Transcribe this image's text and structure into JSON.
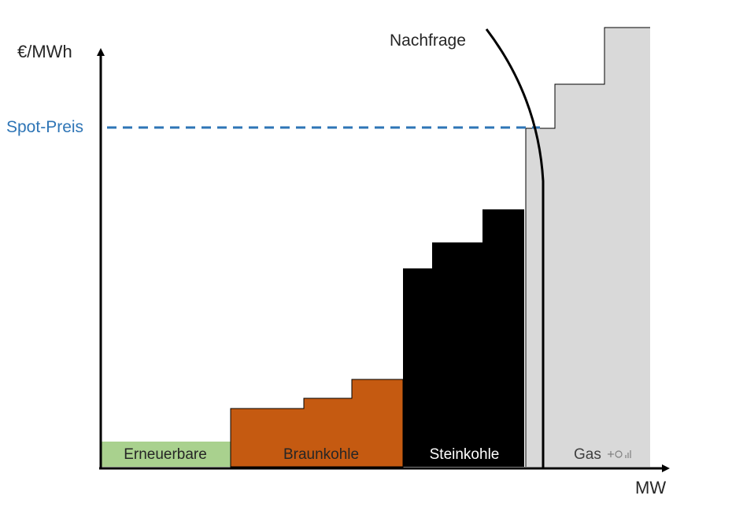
{
  "axes": {
    "y_label": "€/MWh",
    "x_label": "MW"
  },
  "spot_price": {
    "label": "Spot-Preis"
  },
  "demand": {
    "label": "Nachfrage"
  },
  "merit_order": [
    {
      "label": "Erneuerbare",
      "color": "#a9d18e"
    },
    {
      "label": "Braunkohle",
      "color": "#c55a11"
    },
    {
      "label": "Steinkohle",
      "color": "#000000"
    },
    {
      "label": "Gas",
      "color": "#d9d9d9"
    }
  ],
  "colors": {
    "axis": "#000000",
    "spot_price": "#2e75b6",
    "gas_text": "#595959",
    "label_on_dark": "#ffffff",
    "label_on_light": "#262626"
  }
}
